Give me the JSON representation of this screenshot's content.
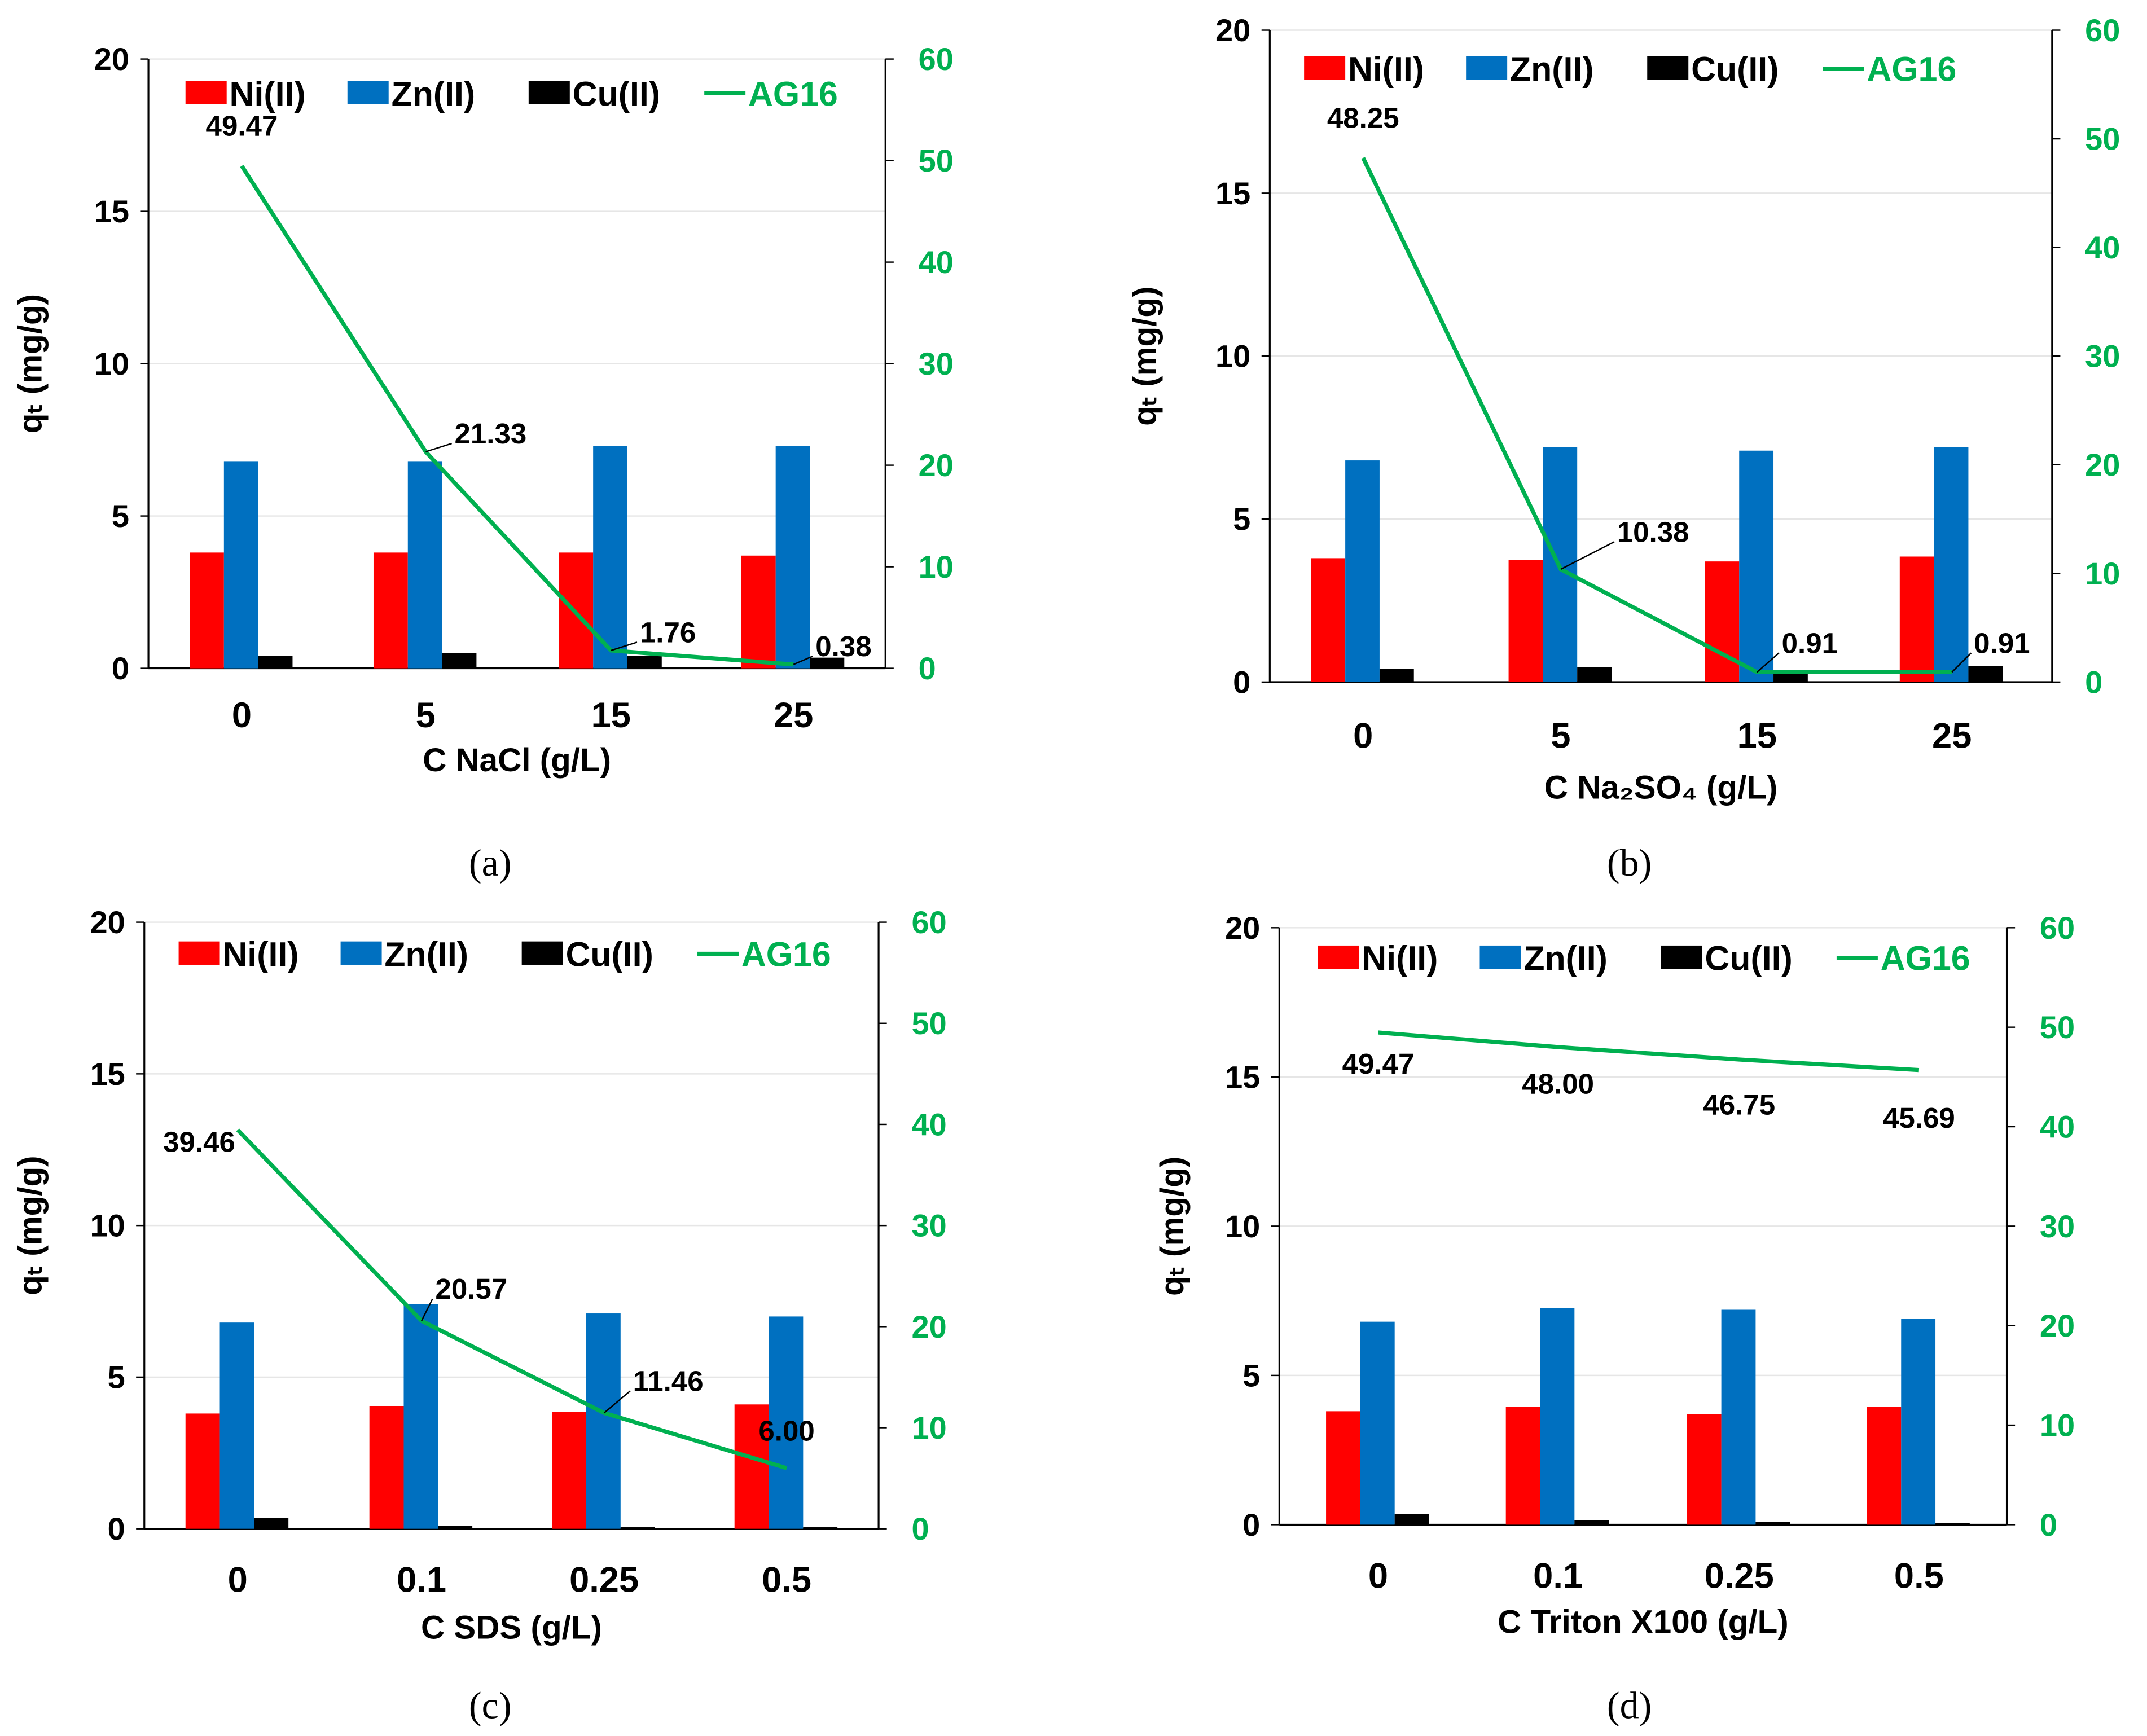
{
  "colors": {
    "ni": "#ff0000",
    "zn": "#0070c0",
    "cu": "#000000",
    "ag16": "#00b050",
    "grid": "#e6e6e6"
  },
  "chart_data": [
    {
      "type": "bar+line",
      "caption": "(a)",
      "categories": [
        "0",
        "5",
        "15",
        "25"
      ],
      "xlabel": "C NaCl (g/L)",
      "ylabel": "qₜ (mg/g)",
      "ylim": [
        0,
        20
      ],
      "yticks": [
        "0",
        "5",
        "10",
        "15",
        "20"
      ],
      "y2lim": [
        0,
        60
      ],
      "y2ticks": [
        "0",
        "10",
        "20",
        "30",
        "40",
        "50",
        "60"
      ],
      "legend": [
        "Ni(II)",
        "Zn(II)",
        "Cu(II)",
        "AG16"
      ],
      "legend_position": "top",
      "series": [
        {
          "name": "Ni(II)",
          "axis": "left",
          "values": [
            3.8,
            3.8,
            3.8,
            3.7
          ]
        },
        {
          "name": "Zn(II)",
          "axis": "left",
          "values": [
            6.8,
            6.8,
            7.3,
            7.3
          ]
        },
        {
          "name": "Cu(II)",
          "axis": "left",
          "values": [
            0.4,
            0.5,
            0.4,
            0.35
          ]
        },
        {
          "name": "AG16",
          "axis": "right",
          "values": [
            49.47,
            21.33,
            1.76,
            0.38
          ],
          "labels": [
            "49.47",
            "21.33",
            "1.76",
            "0.38"
          ]
        }
      ]
    },
    {
      "type": "bar+line",
      "caption": "(b)",
      "categories": [
        "0",
        "5",
        "15",
        "25"
      ],
      "xlabel": "C Na₂SO₄ (g/L)",
      "ylabel": "qₜ (mg/g)",
      "ylim": [
        0,
        20
      ],
      "yticks": [
        "0",
        "5",
        "10",
        "15",
        "20"
      ],
      "y2lim": [
        0,
        60
      ],
      "y2ticks": [
        "0",
        "10",
        "20",
        "30",
        "40",
        "50",
        "60"
      ],
      "legend": [
        "Ni(II)",
        "Zn(II)",
        "Cu(II)",
        "AG16"
      ],
      "legend_position": "top",
      "series": [
        {
          "name": "Ni(II)",
          "axis": "left",
          "values": [
            3.8,
            3.75,
            3.7,
            3.85
          ]
        },
        {
          "name": "Zn(II)",
          "axis": "left",
          "values": [
            6.8,
            7.2,
            7.1,
            7.2
          ]
        },
        {
          "name": "Cu(II)",
          "axis": "left",
          "values": [
            0.4,
            0.45,
            0.3,
            0.5
          ]
        },
        {
          "name": "AG16",
          "axis": "right",
          "values": [
            48.25,
            10.38,
            0.91,
            0.91
          ],
          "labels": [
            "48.25",
            "10.38",
            "0.91",
            "0.91"
          ]
        }
      ]
    },
    {
      "type": "bar+line",
      "caption": "(c)",
      "categories": [
        "0",
        "0.1",
        "0.25",
        "0.5"
      ],
      "xlabel": "C SDS (g/L)",
      "ylabel": "qₜ (mg/g)",
      "ylim": [
        0,
        20
      ],
      "yticks": [
        "0",
        "5",
        "10",
        "15",
        "20"
      ],
      "y2lim": [
        0,
        60
      ],
      "y2ticks": [
        "0",
        "10",
        "20",
        "30",
        "40",
        "50",
        "60"
      ],
      "legend": [
        "Ni(II)",
        "Zn(II)",
        "Cu(II)",
        "AG16"
      ],
      "legend_position": "top",
      "series": [
        {
          "name": "Ni(II)",
          "axis": "left",
          "values": [
            3.8,
            4.05,
            3.85,
            4.1
          ]
        },
        {
          "name": "Zn(II)",
          "axis": "left",
          "values": [
            6.8,
            7.4,
            7.1,
            7.0
          ]
        },
        {
          "name": "Cu(II)",
          "axis": "left",
          "values": [
            0.35,
            0.1,
            0.05,
            0.05
          ]
        },
        {
          "name": "AG16",
          "axis": "right",
          "values": [
            39.46,
            20.57,
            11.46,
            6.0
          ],
          "labels": [
            "39.46",
            "20.57",
            "11.46",
            "6.00"
          ]
        }
      ]
    },
    {
      "type": "bar+line",
      "caption": "(d)",
      "categories": [
        "0",
        "0.1",
        "0.25",
        "0.5"
      ],
      "xlabel": "C Triton X100 (g/L)",
      "ylabel": "qₜ (mg/g)",
      "ylim": [
        0,
        20
      ],
      "yticks": [
        "0",
        "5",
        "10",
        "15",
        "20"
      ],
      "y2lim": [
        0,
        60
      ],
      "y2ticks": [
        "0",
        "10",
        "20",
        "30",
        "40",
        "50",
        "60"
      ],
      "legend": [
        "Ni(II)",
        "Zn(II)",
        "Cu(II)",
        "AG16"
      ],
      "legend_position": "top",
      "series": [
        {
          "name": "Ni(II)",
          "axis": "left",
          "values": [
            3.8,
            3.95,
            3.7,
            3.95
          ]
        },
        {
          "name": "Zn(II)",
          "axis": "left",
          "values": [
            6.8,
            7.25,
            7.2,
            6.9
          ]
        },
        {
          "name": "Cu(II)",
          "axis": "left",
          "values": [
            0.35,
            0.15,
            0.1,
            0.05
          ]
        },
        {
          "name": "AG16",
          "axis": "right",
          "values": [
            49.47,
            48.0,
            46.75,
            45.69
          ],
          "labels": [
            "49.47",
            "48.00",
            "46.75",
            "45.69"
          ]
        }
      ]
    }
  ]
}
